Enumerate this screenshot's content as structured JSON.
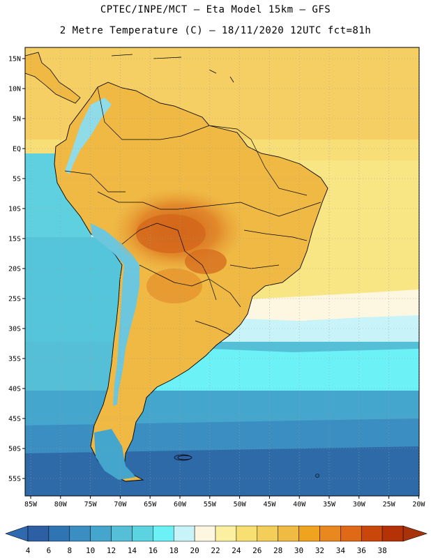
{
  "header": {
    "line1": "CPTEC/INPE/MCT –  Eta Model 15km – GFS",
    "line2": "2 Metre Temperature (C) – 18/11/2020 12UTC fct=81h"
  },
  "map": {
    "lon_ticks": [
      "85W",
      "80W",
      "75W",
      "70W",
      "65W",
      "60W",
      "55W",
      "50W",
      "45W",
      "40W",
      "35W",
      "30W",
      "25W",
      "20W"
    ],
    "lat_ticks": [
      "15N",
      "10N",
      "5N",
      "EQ",
      "5S",
      "10S",
      "15S",
      "20S",
      "25S",
      "30S",
      "35S",
      "40S",
      "45S",
      "50S",
      "55S"
    ]
  },
  "colorbar": {
    "labels": [
      "4",
      "6",
      "8",
      "10",
      "12",
      "14",
      "16",
      "18",
      "20",
      "22",
      "24",
      "26",
      "28",
      "30",
      "32",
      "34",
      "36",
      "38"
    ],
    "colors": [
      "#2c5fa3",
      "#2f74b3",
      "#3a8ec2",
      "#45a6cd",
      "#55bfd8",
      "#5bd3e0",
      "#6cf2f6",
      "#c8f3f8",
      "#fdf6e0",
      "#fbf0a0",
      "#f7e071",
      "#f3cf5a",
      "#efbb42",
      "#f0a31f",
      "#e9881f",
      "#e06917",
      "#c9470b",
      "#b43205"
    ],
    "under_color": "#2f6ab0",
    "over_color": "#a8320a"
  }
}
